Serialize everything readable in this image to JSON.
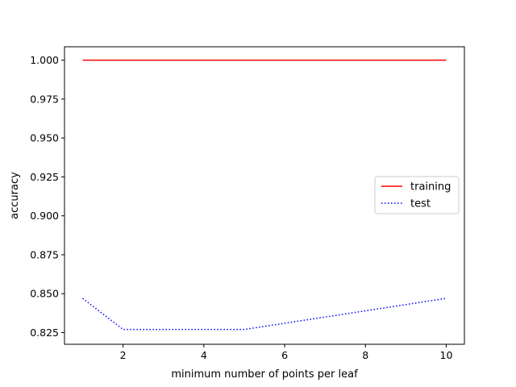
{
  "chart_data": {
    "type": "line",
    "title": "",
    "xlabel": "minimum number of points per leaf",
    "ylabel": "accuracy",
    "x": [
      1,
      2,
      3,
      4,
      5,
      6,
      7,
      8,
      9,
      10
    ],
    "xlim": [
      0.55,
      10.45
    ],
    "ylim": [
      0.8175,
      1.0086
    ],
    "xticks": [
      2,
      4,
      6,
      8,
      10
    ],
    "xtick_labels": [
      "2",
      "4",
      "6",
      "8",
      "10"
    ],
    "yticks": [
      0.825,
      0.85,
      0.875,
      0.9,
      0.925,
      0.95,
      0.975,
      1.0
    ],
    "ytick_labels": [
      "0.825",
      "0.850",
      "0.875",
      "0.900",
      "0.925",
      "0.950",
      "0.975",
      "1.000"
    ],
    "grid": false,
    "legend_position": "center-right",
    "series": [
      {
        "name": "training",
        "values": [
          1.0,
          1.0,
          1.0,
          1.0,
          1.0,
          1.0,
          1.0,
          1.0,
          1.0,
          1.0
        ],
        "color": "#ff0000",
        "line_style": "solid"
      },
      {
        "name": "test",
        "values": [
          0.847,
          0.827,
          0.827,
          0.827,
          0.827,
          0.831,
          0.835,
          0.839,
          0.843,
          0.847
        ],
        "color": "#0000ff",
        "line_style": "dotted"
      }
    ]
  }
}
